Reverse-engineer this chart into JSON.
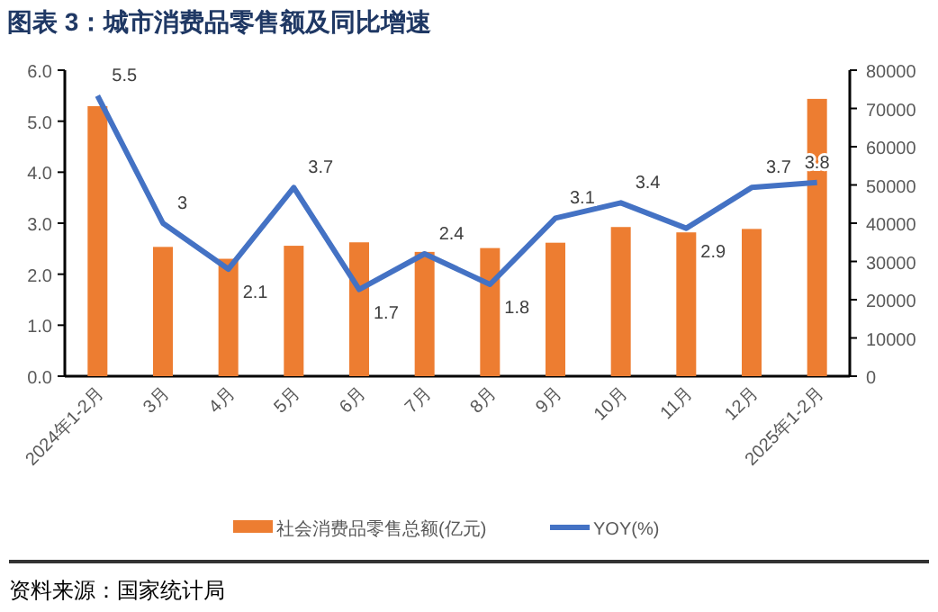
{
  "chart_data": {
    "type": "bar",
    "title": "图表 3：城市消费品零售额及同比增速",
    "categories": [
      "2024年1-2月",
      "3月",
      "4月",
      "5月",
      "6月",
      "7月",
      "8月",
      "9月",
      "10月",
      "11月",
      "12月",
      "2025年1-2月"
    ],
    "series": [
      {
        "name": "社会消费品零售总额(亿元)",
        "axis": "y2",
        "color": "#ed7d31",
        "values": [
          70600,
          33800,
          30700,
          34100,
          35000,
          32500,
          33500,
          34900,
          39000,
          37600,
          38500,
          72500
        ]
      },
      {
        "name": "YOY(%)",
        "type": "line",
        "color": "#4472c4",
        "values": [
          5.5,
          3,
          2.1,
          3.7,
          1.7,
          2.4,
          1.8,
          3.1,
          3.4,
          2.9,
          3.7,
          3.8
        ],
        "value_labels": [
          "5.5",
          "3",
          "2.1",
          "3.7",
          "1.7",
          "2.4",
          "1.8",
          "3.1",
          "3.4",
          "2.9",
          "3.7",
          "3.8"
        ]
      }
    ],
    "ylim": [
      0,
      6
    ],
    "yticks": [
      {
        "value": 0,
        "label": "0.0"
      },
      {
        "value": 1,
        "label": "1.0"
      },
      {
        "value": 2,
        "label": "2.0"
      },
      {
        "value": 3,
        "label": "3.0"
      },
      {
        "value": 4,
        "label": "4.0"
      },
      {
        "value": 5,
        "label": "5.0"
      },
      {
        "value": 6,
        "label": "6.0"
      }
    ],
    "y2lim": [
      0,
      80000
    ],
    "y2ticks": [
      0,
      10000,
      20000,
      30000,
      40000,
      50000,
      60000,
      70000,
      80000
    ],
    "legend": "bottom",
    "marker": "none",
    "line_style": "solid",
    "annotations": [
      "资料来源：国家统计局"
    ]
  }
}
